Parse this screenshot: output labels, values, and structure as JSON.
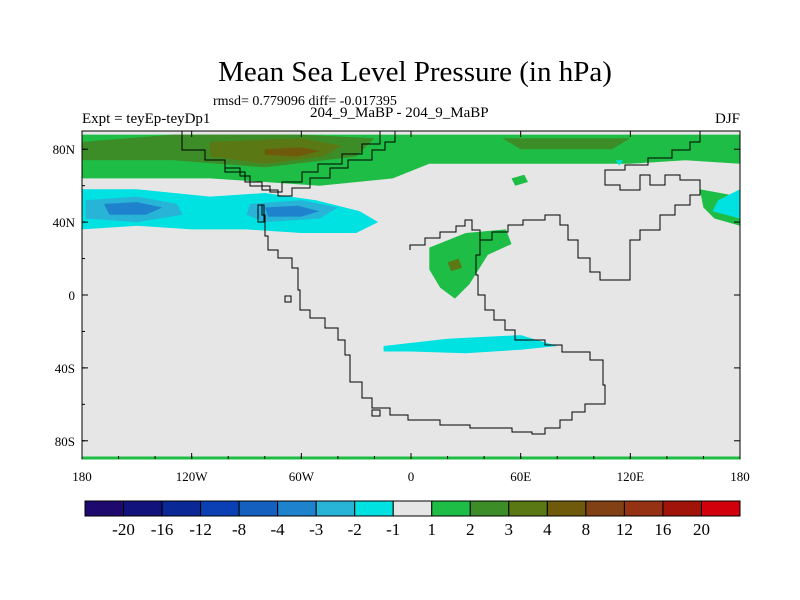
{
  "header": {
    "title": "Mean Sea Level Pressure (in hPa)",
    "stats": "rmsd= 0.779096 diff= -0.017395",
    "left_label": "Expt = teyEp-teyDp1",
    "center_label": "204_9_MaBP - 204_9_MaBP",
    "season": "DJF"
  },
  "chart_data": {
    "type": "heatmap",
    "title": "Mean Sea Level Pressure (in hPa)",
    "subtitle": "rmsd= 0.779096 diff= -0.017395",
    "xlabel": "",
    "ylabel": "",
    "xlim": [
      -180,
      180
    ],
    "ylim": [
      -90,
      90
    ],
    "x_ticks": [
      {
        "value": -180,
        "label": "180"
      },
      {
        "value": -120,
        "label": "120W"
      },
      {
        "value": -60,
        "label": "60W"
      },
      {
        "value": 0,
        "label": "0"
      },
      {
        "value": 60,
        "label": "60E"
      },
      {
        "value": 120,
        "label": "120E"
      },
      {
        "value": 180,
        "label": "180"
      }
    ],
    "y_ticks": [
      {
        "value": 80,
        "label": "80N"
      },
      {
        "value": 40,
        "label": "40N"
      },
      {
        "value": 0,
        "label": "0"
      },
      {
        "value": -40,
        "label": "40S"
      },
      {
        "value": -80,
        "label": "80S"
      }
    ],
    "contour_levels": [
      "-20",
      "-16",
      "-12",
      "-8",
      "-4",
      "-3",
      "-2",
      "-1",
      "1",
      "2",
      "3",
      "4",
      "8",
      "12",
      "16",
      "20"
    ],
    "colors": [
      "#1e0a6e",
      "#12127d",
      "#0a2896",
      "#0a40b4",
      "#1460be",
      "#1e82cd",
      "#28b4d7",
      "#00e1e1",
      "#e6e6e6",
      "#1ebe46",
      "#3c8c28",
      "#5a7814",
      "#6e5a0a",
      "#824114",
      "#963214",
      "#a0140a",
      "#d2000a"
    ],
    "background_color": "#e6e6e6",
    "regions": [
      {
        "level": "2",
        "color": "#1ebe46",
        "points": [
          [
            -180,
            88
          ],
          [
            -120,
            88
          ],
          [
            -60,
            88
          ],
          [
            0,
            88
          ],
          [
            60,
            88
          ],
          [
            120,
            88
          ],
          [
            180,
            88
          ],
          [
            180,
            72
          ],
          [
            150,
            74
          ],
          [
            120,
            72
          ],
          [
            60,
            72
          ],
          [
            10,
            72
          ],
          [
            -10,
            64
          ],
          [
            -50,
            60
          ],
          [
            -80,
            62
          ],
          [
            -110,
            64
          ],
          [
            -150,
            64
          ],
          [
            -180,
            64
          ]
        ]
      },
      {
        "level": "2",
        "color": "#1ebe46",
        "points": [
          [
            158,
            58
          ],
          [
            180,
            54
          ],
          [
            180,
            38
          ],
          [
            166,
            42
          ],
          [
            160,
            48
          ]
        ]
      },
      {
        "level": "2",
        "color": "#1ebe46",
        "points": [
          [
            10,
            26
          ],
          [
            30,
            34
          ],
          [
            52,
            36
          ],
          [
            55,
            28
          ],
          [
            42,
            22
          ],
          [
            32,
            6
          ],
          [
            24,
            -2
          ],
          [
            16,
            4
          ],
          [
            10,
            14
          ]
        ]
      },
      {
        "level": "2",
        "color": "#1ebe46",
        "points": [
          [
            55,
            64
          ],
          [
            62,
            66
          ],
          [
            64,
            62
          ],
          [
            57,
            60
          ]
        ]
      },
      {
        "level": "3",
        "color": "#3c8c28",
        "points": [
          [
            -180,
            84
          ],
          [
            -130,
            88
          ],
          [
            -60,
            88
          ],
          [
            -20,
            86
          ],
          [
            -30,
            76
          ],
          [
            -80,
            70
          ],
          [
            -130,
            74
          ],
          [
            -180,
            74
          ]
        ]
      },
      {
        "level": "3",
        "color": "#3c8c28",
        "points": [
          [
            50,
            86
          ],
          [
            120,
            86
          ],
          [
            110,
            80
          ],
          [
            60,
            80
          ]
        ]
      },
      {
        "level": "4",
        "color": "#5a7814",
        "points": [
          [
            -110,
            84
          ],
          [
            -60,
            86
          ],
          [
            -38,
            82
          ],
          [
            -48,
            76
          ],
          [
            -80,
            72
          ],
          [
            -110,
            76
          ]
        ]
      },
      {
        "level": "8",
        "color": "#6e5a0a",
        "points": [
          [
            -80,
            80
          ],
          [
            -60,
            81
          ],
          [
            -50,
            79
          ],
          [
            -62,
            76
          ],
          [
            -80,
            77
          ]
        ]
      },
      {
        "level": "4",
        "color": "#5a7814",
        "points": [
          [
            20,
            18
          ],
          [
            26,
            20
          ],
          [
            28,
            15
          ],
          [
            22,
            13
          ]
        ]
      },
      {
        "level": "-1",
        "color": "#00e1e1",
        "points": [
          [
            -180,
            58
          ],
          [
            -150,
            58
          ],
          [
            -110,
            54
          ],
          [
            -80,
            56
          ],
          [
            -52,
            52
          ],
          [
            -28,
            46
          ],
          [
            -18,
            40
          ],
          [
            -30,
            34
          ],
          [
            -60,
            34
          ],
          [
            -90,
            36
          ],
          [
            -120,
            36
          ],
          [
            -150,
            38
          ],
          [
            -180,
            36
          ]
        ]
      },
      {
        "level": "-1",
        "color": "#00e1e1",
        "points": [
          [
            -15,
            -28
          ],
          [
            20,
            -24
          ],
          [
            60,
            -22
          ],
          [
            80,
            -28
          ],
          [
            60,
            -30
          ],
          [
            30,
            -32
          ],
          [
            0,
            -31
          ],
          [
            -15,
            -31
          ]
        ]
      },
      {
        "level": "-1",
        "color": "#00e1e1",
        "points": [
          [
            180,
            58
          ],
          [
            168,
            52
          ],
          [
            165,
            46
          ],
          [
            180,
            42
          ]
        ]
      },
      {
        "level": "-1",
        "color": "#00e1e1",
        "points": [
          [
            112,
            74
          ],
          [
            116,
            74
          ],
          [
            114,
            71
          ]
        ]
      },
      {
        "level": "-2",
        "color": "#28b4d7",
        "points": [
          [
            -178,
            52
          ],
          [
            -150,
            54
          ],
          [
            -128,
            50
          ],
          [
            -125,
            44
          ],
          [
            -150,
            40
          ],
          [
            -178,
            42
          ]
        ]
      },
      {
        "level": "-2",
        "color": "#28b4d7",
        "points": [
          [
            -88,
            50
          ],
          [
            -60,
            52
          ],
          [
            -40,
            48
          ],
          [
            -50,
            42
          ],
          [
            -80,
            40
          ],
          [
            -90,
            44
          ]
        ]
      },
      {
        "level": "-3",
        "color": "#1e82cd",
        "points": [
          [
            -168,
            50
          ],
          [
            -150,
            51
          ],
          [
            -136,
            48
          ],
          [
            -145,
            44
          ],
          [
            -165,
            44
          ]
        ]
      },
      {
        "level": "-3",
        "color": "#1e82cd",
        "points": [
          [
            -80,
            48
          ],
          [
            -62,
            49
          ],
          [
            -50,
            46
          ],
          [
            -60,
            43
          ],
          [
            -78,
            43
          ]
        ]
      }
    ],
    "notes": "Map of DJF mean sea level pressure difference with a palaeogeographic (204.9 Ma) coastline overlay"
  },
  "colorbar": {
    "labels": [
      "-20",
      "-16",
      "-12",
      "-8",
      "-4",
      "-3",
      "-2",
      "-1",
      "1",
      "2",
      "3",
      "4",
      "8",
      "12",
      "16",
      "20"
    ]
  }
}
